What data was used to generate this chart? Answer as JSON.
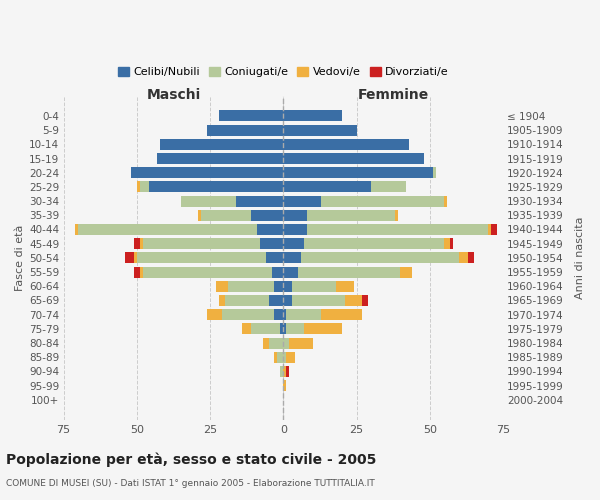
{
  "age_groups": [
    "0-4",
    "5-9",
    "10-14",
    "15-19",
    "20-24",
    "25-29",
    "30-34",
    "35-39",
    "40-44",
    "45-49",
    "50-54",
    "55-59",
    "60-64",
    "65-69",
    "70-74",
    "75-79",
    "80-84",
    "85-89",
    "90-94",
    "95-99",
    "100+"
  ],
  "maschi": {
    "celibi": [
      22,
      26,
      42,
      43,
      52,
      46,
      16,
      11,
      9,
      8,
      6,
      4,
      3,
      5,
      3,
      1,
      0,
      0,
      0,
      0,
      0
    ],
    "coniugati": [
      0,
      0,
      0,
      0,
      0,
      3,
      19,
      17,
      61,
      40,
      44,
      44,
      16,
      15,
      18,
      10,
      5,
      2,
      1,
      0,
      0
    ],
    "vedovi": [
      0,
      0,
      0,
      0,
      0,
      1,
      0,
      1,
      1,
      1,
      1,
      1,
      4,
      2,
      5,
      3,
      2,
      1,
      0,
      0,
      0
    ],
    "divorziati": [
      0,
      0,
      0,
      0,
      0,
      0,
      0,
      0,
      0,
      2,
      3,
      2,
      0,
      0,
      0,
      0,
      0,
      0,
      0,
      0,
      0
    ]
  },
  "femmine": {
    "nubili": [
      20,
      25,
      43,
      48,
      51,
      30,
      13,
      8,
      8,
      7,
      6,
      5,
      3,
      3,
      1,
      1,
      0,
      0,
      0,
      0,
      0
    ],
    "coniugate": [
      0,
      0,
      0,
      0,
      1,
      12,
      42,
      30,
      62,
      48,
      54,
      35,
      15,
      18,
      12,
      6,
      2,
      1,
      0,
      0,
      0
    ],
    "vedove": [
      0,
      0,
      0,
      0,
      0,
      0,
      1,
      1,
      1,
      2,
      3,
      4,
      6,
      6,
      14,
      13,
      8,
      3,
      1,
      1,
      0
    ],
    "divorziate": [
      0,
      0,
      0,
      0,
      0,
      0,
      0,
      0,
      2,
      1,
      2,
      0,
      0,
      2,
      0,
      0,
      0,
      0,
      1,
      0,
      0
    ]
  },
  "colors": {
    "celibi": "#3a6ea5",
    "coniugati": "#b5c99a",
    "vedovi": "#f0b040",
    "divorziati": "#cc2020"
  },
  "xlim": 75,
  "title": "Popolazione per età, sesso e stato civile - 2005",
  "subtitle": "COMUNE DI MUSEI (SU) - Dati ISTAT 1° gennaio 2005 - Elaborazione TUTTITALIA.IT",
  "ylabel_left": "Fasce di età",
  "ylabel_right": "Anni di nascita",
  "right_labels": [
    "2000-2004",
    "1995-1999",
    "1990-1994",
    "1985-1989",
    "1980-1984",
    "1975-1979",
    "1970-1974",
    "1965-1969",
    "1960-1964",
    "1955-1959",
    "1950-1954",
    "1945-1949",
    "1940-1944",
    "1935-1939",
    "1930-1934",
    "1925-1929",
    "1920-1924",
    "1915-1919",
    "1910-1914",
    "1905-1909",
    "≤ 1904"
  ],
  "background_color": "#f5f5f5",
  "grid_color": "#cccccc"
}
